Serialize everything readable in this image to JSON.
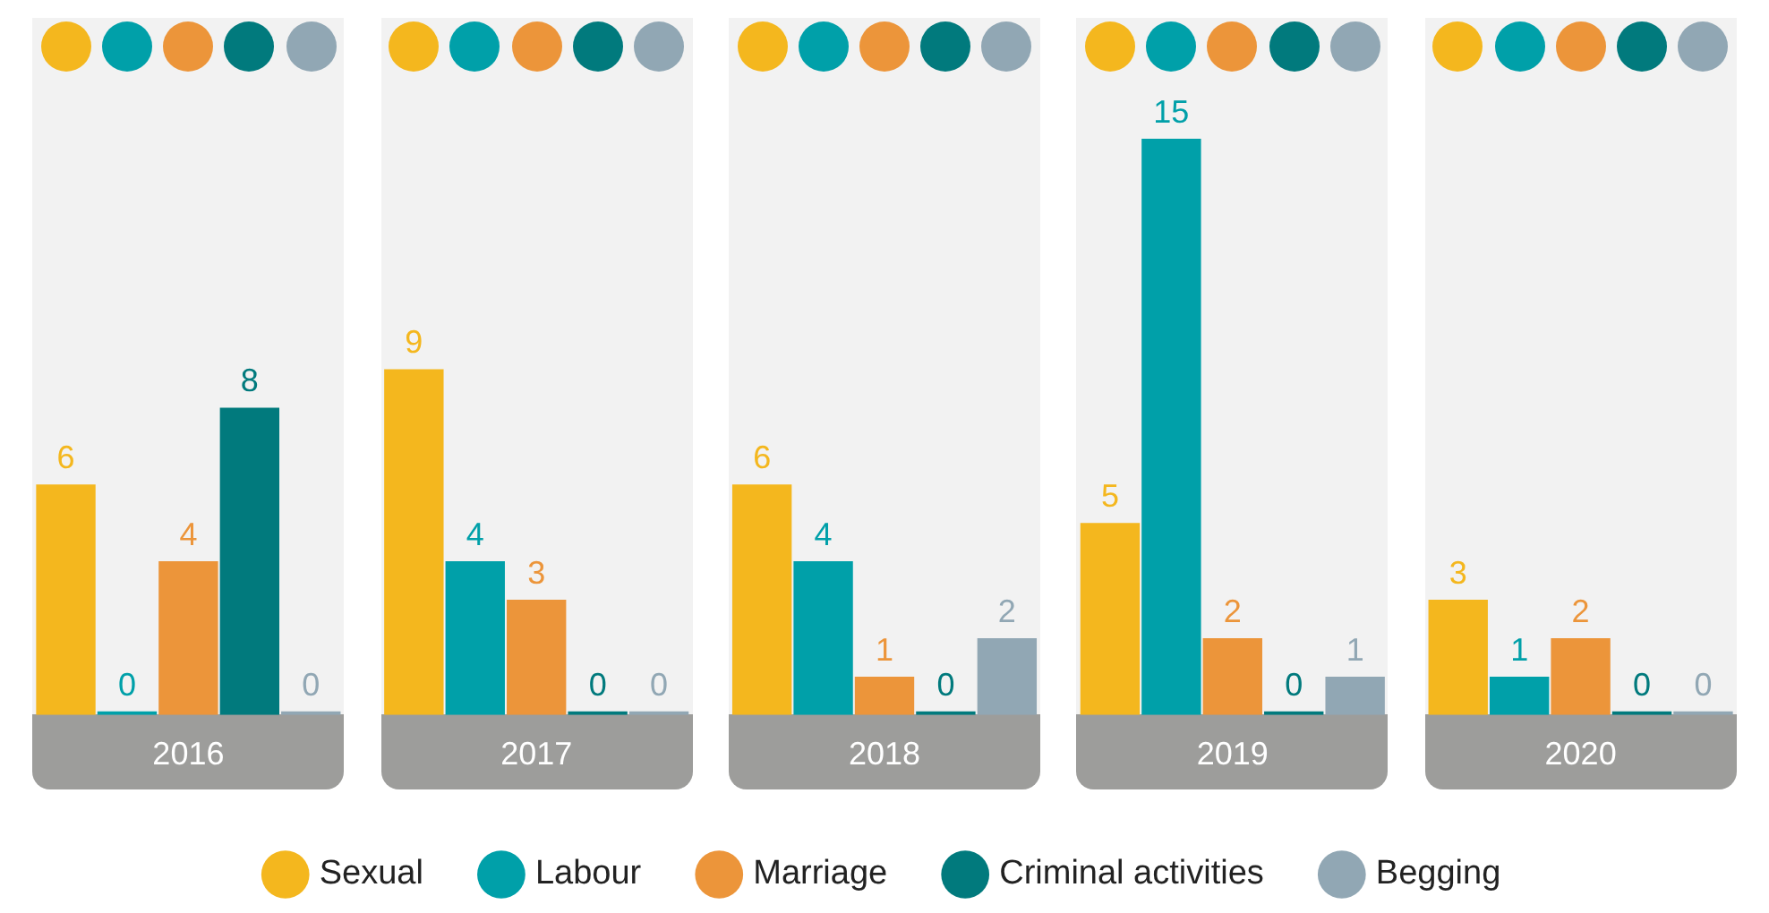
{
  "chart_data": {
    "type": "bar",
    "categories": [
      "2016",
      "2017",
      "2018",
      "2019",
      "2020"
    ],
    "series": [
      {
        "name": "Sexual",
        "color": "#f4b71e",
        "values": [
          6,
          9,
          6,
          5,
          3
        ]
      },
      {
        "name": "Labour",
        "color": "#00a0a9",
        "values": [
          0,
          4,
          4,
          15,
          1
        ]
      },
      {
        "name": "Marriage",
        "color": "#ec953a",
        "values": [
          4,
          3,
          1,
          2,
          2
        ]
      },
      {
        "name": "Criminal activities",
        "color": "#017a7d",
        "values": [
          8,
          0,
          0,
          0,
          0
        ]
      },
      {
        "name": "Begging",
        "color": "#91a7b4",
        "values": [
          0,
          0,
          2,
          1,
          0
        ]
      }
    ],
    "data_labels": true,
    "legend": "bottom",
    "grid": false
  }
}
